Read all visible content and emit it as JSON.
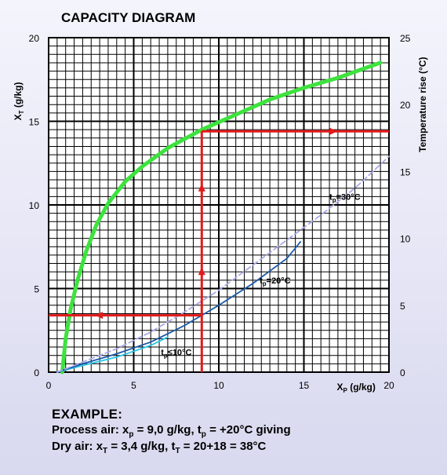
{
  "chart_data": {
    "type": "line",
    "title": "CAPACITY DIAGRAM",
    "xlabel": {
      "main": "X",
      "sub": "P",
      "rest": " (g/kg)"
    },
    "ylabel_left": {
      "main": "X",
      "sub": "T",
      "rest": " (g/kg)"
    },
    "ylabel_right": "Temperature rise (°C)",
    "xlim": [
      0,
      20
    ],
    "ylim": [
      0,
      20
    ],
    "y2lim": [
      0,
      25
    ],
    "x_ticks": [
      "0",
      "5",
      "10",
      "15",
      "20"
    ],
    "y_ticks": [
      "0",
      "5",
      "10",
      "15",
      "20"
    ],
    "y2_ticks": [
      "0",
      "5",
      "10",
      "15",
      "20",
      "25"
    ],
    "grid": true,
    "series": [
      {
        "color": "#3ee23e",
        "axis": "left",
        "x": [
          0.8,
          1.0,
          1.3,
          1.7,
          2.2,
          2.8,
          3.5,
          4.5,
          5.5,
          7.0,
          9.0,
          11.0,
          13.0,
          15.0,
          17.0,
          19.5
        ],
        "y": [
          0.0,
          2.0,
          3.8,
          5.5,
          7.2,
          8.8,
          10.1,
          11.4,
          12.3,
          13.4,
          14.5,
          15.4,
          16.3,
          17.0,
          17.6,
          18.5
        ]
      },
      {
        "name": "t_p≤10°C",
        "color": "#29c6e6",
        "axis": "left",
        "x": [
          0.5,
          2.0,
          4.0,
          6.0,
          7.0
        ],
        "y": [
          0.0,
          0.4,
          0.9,
          1.6,
          2.1
        ]
      },
      {
        "name": "t_p=20°C",
        "color": "#1a5aa8",
        "axis": "left",
        "x": [
          0.5,
          2.0,
          4.0,
          6.0,
          8.0,
          9.0,
          10.0,
          12.0,
          14.0,
          14.8
        ],
        "y": [
          0.0,
          0.5,
          1.1,
          1.8,
          2.8,
          3.4,
          4.0,
          5.3,
          6.8,
          7.8
        ]
      },
      {
        "name": "t_p=30°C",
        "color": "#a8a8e8",
        "axis": "left",
        "dash": true,
        "x": [
          0.5,
          2.0,
          4.0,
          6.0,
          8.0,
          10.0,
          12.0,
          14.0,
          16.0,
          18.0,
          20.0
        ],
        "y": [
          0.0,
          0.6,
          1.4,
          2.4,
          3.6,
          4.9,
          6.4,
          7.9,
          9.4,
          11.0,
          12.9
        ]
      }
    ],
    "example_path": {
      "color": "#e21a1a",
      "x_p": 9.0,
      "x_t": 3.4,
      "temp_rise": 18
    },
    "annotations": [
      {
        "label": "t",
        "sub": "p",
        "rest": "=30°C",
        "x": 16.5,
        "y": 10.3
      },
      {
        "label": "t",
        "sub": "p",
        "rest": "=20°C",
        "x": 12.4,
        "y": 5.3
      },
      {
        "label": "t",
        "sub": "p",
        "rest": "≤10°C",
        "x": 6.6,
        "y": 1.0
      }
    ]
  },
  "example": {
    "title": "EXAMPLE:",
    "line1": {
      "a": "Process air: x",
      "a_sub": "p",
      "b": " = 9,0 g/kg, t",
      "b_sub": "p",
      "c": " = +20°C giving"
    },
    "line2": {
      "a": "Dry air: x",
      "a_sub": "T",
      "b": " = 3,4 g/kg, t",
      "b_sub": "T",
      "c": " = 20+18 = 38°C"
    }
  }
}
